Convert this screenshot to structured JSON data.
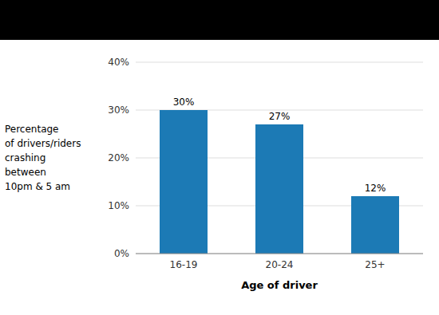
{
  "chart_data": {
    "type": "bar",
    "categories": [
      "16-19",
      "20-24",
      "25+"
    ],
    "values": [
      30,
      27,
      12
    ],
    "value_labels": [
      "30%",
      "27%",
      "12%"
    ],
    "data_labels": true,
    "color": "#1c7ab5",
    "xlabel": "Age of driver",
    "ylabel": [
      "Percentage",
      "of drivers/riders",
      "crashing",
      "between",
      "10pm & 5 am"
    ],
    "ylim": [
      0,
      40
    ],
    "yticks": [
      {
        "value": 0,
        "label": "0%"
      },
      {
        "value": 10,
        "label": "10%"
      },
      {
        "value": 20,
        "label": "20%"
      },
      {
        "value": 30,
        "label": "30%"
      },
      {
        "value": 40,
        "label": "40%"
      }
    ],
    "grid": true
  }
}
